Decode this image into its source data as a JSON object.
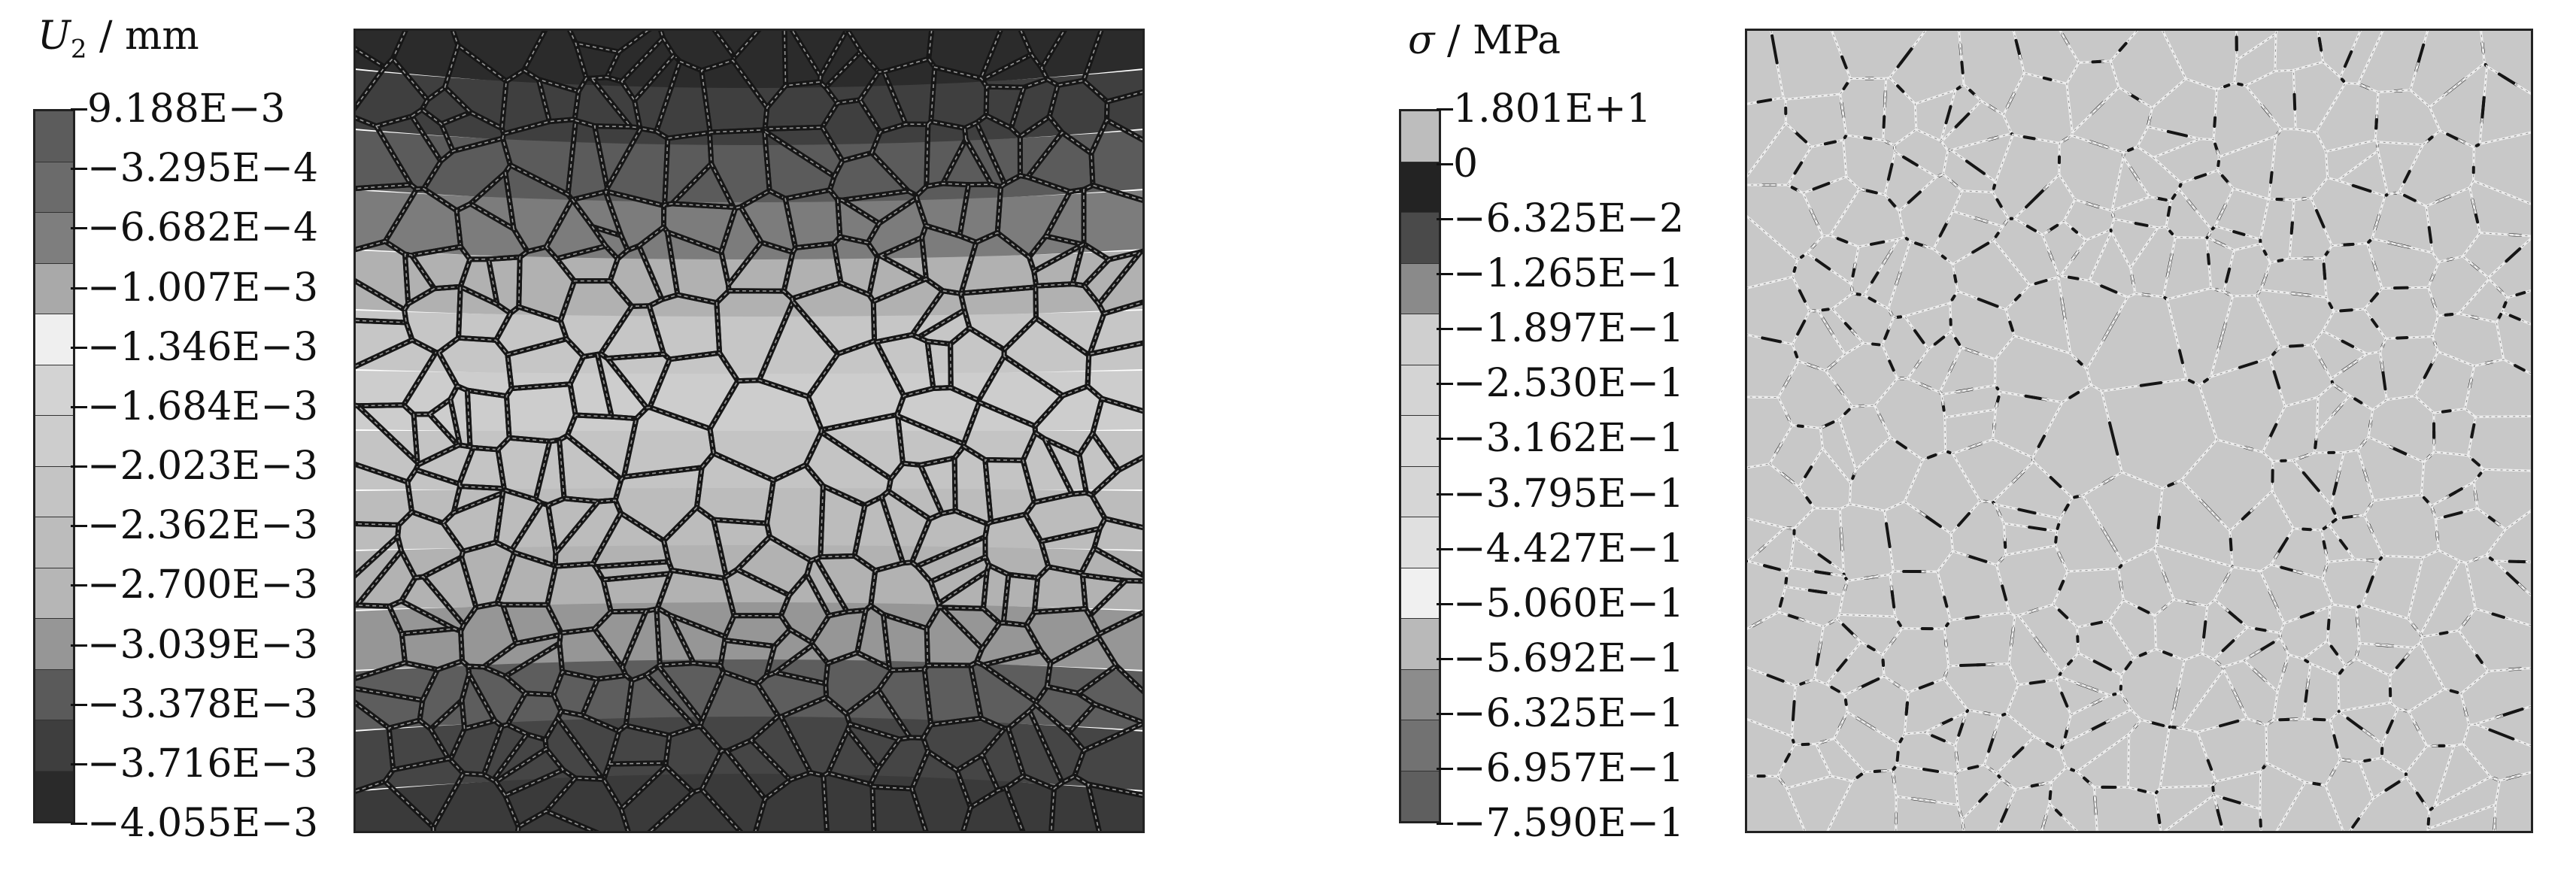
{
  "left_panel": {
    "legend": {
      "symbol": "U",
      "subscript": "2",
      "unit": " / mm",
      "colors": [
        "#5c5c5c",
        "#6b6b6b",
        "#7e7e7e",
        "#a9a9a9",
        "#efefef",
        "#d3d3d3",
        "#cdcdcd",
        "#c4c4c4",
        "#bcbcbc",
        "#b6b6b6",
        "#969696",
        "#5a5a5a",
        "#3e3e3e",
        "#2a2a2a"
      ],
      "ticks": [
        "9.188E−3",
        "−3.295E−4",
        "−6.682E−4",
        "−1.007E−3",
        "−1.346E−3",
        "−1.684E−3",
        "−2.023E−3",
        "−2.362E−3",
        "−2.700E−3",
        "−3.039E−3",
        "−3.378E−3",
        "−3.716E−3",
        "−4.055E−3"
      ]
    },
    "bands": [
      "#2b2b2b",
      "#3f3f3f",
      "#5b5b5b",
      "#7c7c7c",
      "#b1b1b1",
      "#c6c6c6",
      "#cdcdcd",
      "#c4c4c4",
      "#bcbcbc",
      "#b2b2b2",
      "#969696",
      "#5d5d5d",
      "#454545",
      "#3a3a3a"
    ]
  },
  "right_panel": {
    "legend": {
      "symbol": "σ",
      "unit": " / MPa",
      "colors": [
        "#bdbdbd",
        "#232323",
        "#4a4a4a",
        "#8a8a8a",
        "#cfcfcf",
        "#d4d4d4",
        "#d9d9d9",
        "#d6d6d6",
        "#e0e0e0",
        "#f0f0f0",
        "#b9b9b9",
        "#8c8c8c",
        "#727272",
        "#5f5f5f"
      ],
      "ticks": [
        "1.801E+1",
        "0",
        "−6.325E−2",
        "−1.265E−1",
        "−1.897E−1",
        "−2.530E−1",
        "−3.162E−1",
        "−3.795E−1",
        "−4.427E−1",
        "−5.060E−1",
        "−5.692E−1",
        "−6.325E−1",
        "−6.957E−1",
        "−7.590E−1"
      ]
    },
    "fill": "#c8c8c8"
  }
}
